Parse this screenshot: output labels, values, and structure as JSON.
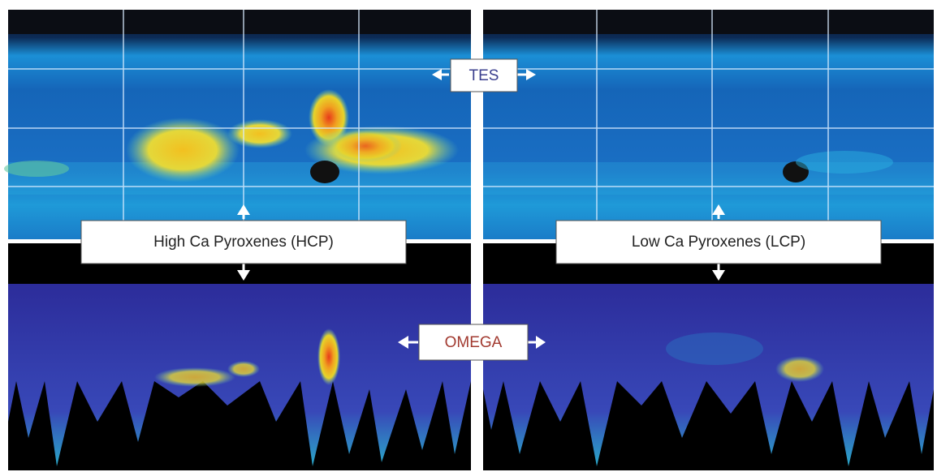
{
  "labels": {
    "tes": "TES",
    "omega": "OMEGA",
    "hcp": "High Ca Pyroxenes (HCP)",
    "lcp": "Low Ca Pyroxenes (LCP)"
  }
}
